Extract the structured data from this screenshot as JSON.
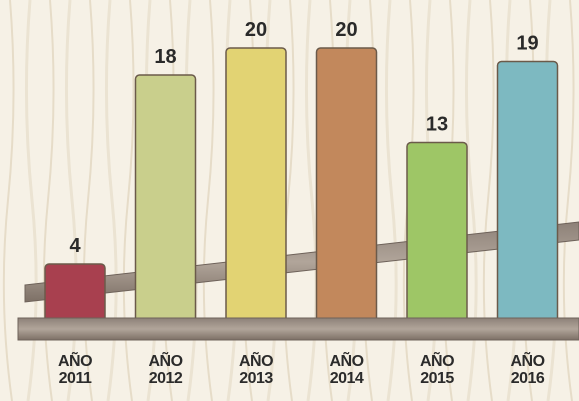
{
  "chart_data": {
    "type": "bar",
    "categories": [
      "AÑO 2011",
      "AÑO 2012",
      "AÑO 2013",
      "AÑO 2014",
      "AÑO 2015",
      "AÑO 2016"
    ],
    "values": [
      4,
      18,
      20,
      20,
      13,
      19
    ],
    "colors": [
      "#a8404f",
      "#c9cf8c",
      "#e2d373",
      "#c2885c",
      "#9ec666",
      "#7db9c1"
    ]
  }
}
